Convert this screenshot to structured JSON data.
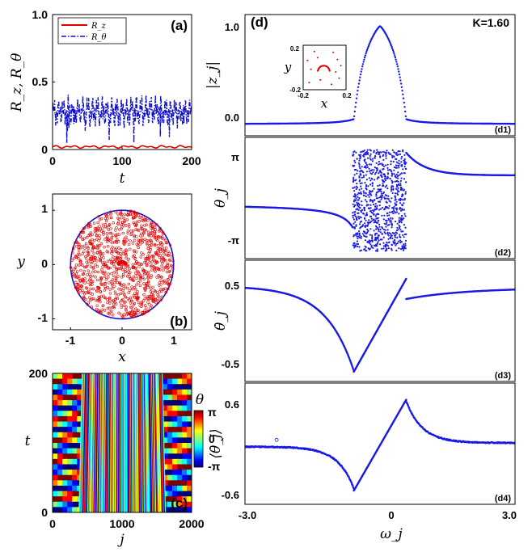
{
  "chart_data": [
    {
      "id": "a",
      "type": "line",
      "panel_label": "(a)",
      "xlabel": "t",
      "ylabel": "R_z, R_θ",
      "xlim": [
        0,
        200
      ],
      "ylim": [
        0,
        1.0
      ],
      "xticks": [
        "0",
        "100",
        "200"
      ],
      "yticks": [
        "0",
        "0.5",
        "1.0"
      ],
      "legend": [
        "R_z",
        "R_θ"
      ],
      "legend_position": "top-left",
      "series": [
        {
          "name": "R_z",
          "color": "#e00000",
          "style": "solid",
          "mean": 0.02,
          "amplitude": 0.01
        },
        {
          "name": "R_θ",
          "color": "#1010d0",
          "style": "dash-dot",
          "mean": 0.28,
          "amplitude": 0.1
        }
      ]
    },
    {
      "id": "b",
      "type": "scatter",
      "panel_label": "(b)",
      "xlabel": "x",
      "ylabel": "y",
      "xlim": [
        -1.35,
        1.35
      ],
      "ylim": [
        -1.2,
        1.3
      ],
      "xticks": [
        "-1",
        "0",
        "1"
      ],
      "yticks": [
        "-1",
        "0",
        "1"
      ],
      "unit_circle_color": "#1010d0",
      "point_color": "#e00000",
      "n_points": 2000
    },
    {
      "id": "c",
      "type": "heatmap",
      "panel_label": "(c)",
      "xlabel": "j",
      "ylabel": "t",
      "xlim": [
        0,
        2000
      ],
      "ylim": [
        0,
        200
      ],
      "xticks": [
        "0",
        "1000",
        "2000"
      ],
      "yticks": [
        "0",
        "200"
      ],
      "colorbar_label": "θ",
      "colorbar_ticks": [
        "π",
        "0",
        "-π"
      ],
      "colormap": "jet",
      "incoherent_range_j": [
        420,
        1580
      ]
    },
    {
      "id": "d1",
      "type": "scatter",
      "panel_label": "(d1)",
      "title": "(d)",
      "annotation": "K=1.60",
      "ylabel": "|z_j|",
      "xlim": [
        -3.2,
        3.2
      ],
      "ylim": [
        -0.12,
        1.12
      ],
      "yticks": [
        "0.0",
        "1.0"
      ],
      "peak": {
        "x": 0,
        "y": 1.0
      },
      "inset": {
        "xlabel": "x",
        "ylabel": "y",
        "xticks": [
          "-0.2",
          "0.2"
        ],
        "yticks": [
          "0.2",
          "-0.2"
        ],
        "xlim": [
          -0.25,
          0.25
        ],
        "ylim": [
          -0.25,
          0.25
        ]
      }
    },
    {
      "id": "d2",
      "type": "scatter",
      "panel_label": "(d2)",
      "ylabel": "θ_j",
      "xlim": [
        -3.2,
        3.2
      ],
      "yticks": [
        "π",
        "-π"
      ],
      "incoherent_range_omega": [
        -0.65,
        0.62
      ]
    },
    {
      "id": "d3",
      "type": "scatter",
      "panel_label": "(d3)",
      "ylabel": "θ̇_j",
      "xlim": [
        -3.2,
        3.2
      ],
      "ylim": [
        -0.72,
        0.78
      ],
      "yticks": [
        "0.5",
        "-0.5"
      ]
    },
    {
      "id": "d4",
      "type": "scatter",
      "panel_label": "(d4)",
      "ylabel": "⟨θ̇_j⟩",
      "xlabel": "ω_j",
      "xlim": [
        -3.2,
        3.2
      ],
      "ylim": [
        -0.78,
        0.82
      ],
      "xticks": [
        "-3.0",
        "0",
        "3.0"
      ],
      "yticks": [
        "0.6",
        "-0.6"
      ]
    }
  ]
}
